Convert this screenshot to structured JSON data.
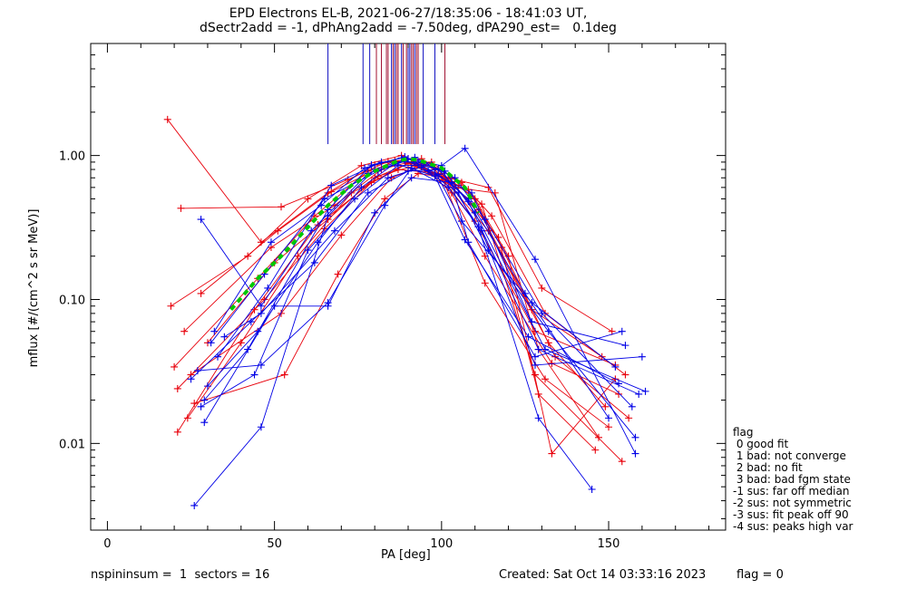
{
  "header": {
    "title_line1": "EPD Electrons EL-B, 2021-06-27/18:35:06 - 18:41:03 UT,",
    "title_line2": "dSectr2add = -1, dPhAng2add = -7.50deg, dPA290_est=   0.1deg"
  },
  "footer": {
    "left": "nspininsum =  1  sectors = 16",
    "created": "Created: Sat Oct 14 03:33:16 2023",
    "flag": "flag = 0"
  },
  "legend": {
    "title": "flag",
    "items": [
      " 0 good fit",
      " 1 bad: not converge",
      " 2 bad: no fit",
      " 3 bad: bad fgm state",
      "-1 sus: far off median",
      "-2 sus: not symmetric",
      "-3 sus: fit peak off 90",
      "-4 sus: peaks high var"
    ]
  },
  "chart_data": {
    "type": "line",
    "xlabel": "PA [deg]",
    "ylabel": "mflux [#/(cm^2 s sr MeV)]",
    "xlim": [
      -5,
      185
    ],
    "ylim": [
      0.0025,
      6
    ],
    "yscale": "log",
    "xticks": [
      0,
      50,
      100,
      150
    ],
    "xtick_labels": [
      "0",
      "50",
      "100",
      "150"
    ],
    "yticks": [
      0.01,
      0.1,
      1.0
    ],
    "ytick_labels": [
      "0.01",
      "0.10",
      "1.00"
    ],
    "colors": {
      "red": "#e8000b",
      "blue": "#0000e6",
      "green": "#00c800",
      "vline_red": "#a01030",
      "vline_blue": "#1010c0"
    },
    "vlines": {
      "y_bottom": 1.2,
      "red_x": [
        80.5,
        82,
        83.5,
        84,
        85.5,
        86.5,
        87,
        88.5,
        89.5,
        91,
        91.5,
        92.5,
        93,
        101
      ],
      "blue_x": [
        66,
        76.5,
        78.5,
        85,
        86,
        88,
        90,
        90.5,
        92,
        94.5,
        98
      ]
    },
    "series": [
      {
        "color": "red",
        "x": [
          18,
          46,
          66,
          80,
          90,
          100,
          113,
          131,
          150
        ],
        "y": [
          1.78,
          0.25,
          0.55,
          0.86,
          0.95,
          0.72,
          0.13,
          0.028,
          0.013
        ]
      },
      {
        "color": "red",
        "x": [
          22,
          52,
          72,
          84,
          93,
          103,
          113,
          133,
          153
        ],
        "y": [
          0.43,
          0.44,
          0.68,
          0.91,
          0.9,
          0.55,
          0.2,
          0.036,
          0.022
        ]
      },
      {
        "color": "red",
        "x": [
          19,
          42,
          60,
          76,
          88,
          98,
          110,
          128,
          152
        ],
        "y": [
          0.09,
          0.2,
          0.5,
          0.85,
          1.0,
          0.8,
          0.35,
          0.06,
          0.035
        ]
      },
      {
        "color": "red",
        "x": [
          20,
          45,
          62,
          78,
          89,
          101,
          114,
          132,
          149
        ],
        "y": [
          0.034,
          0.14,
          0.38,
          0.78,
          0.93,
          0.68,
          0.3,
          0.05,
          0.018
        ]
      },
      {
        "color": "red",
        "x": [
          21,
          47,
          65,
          81,
          92,
          104,
          116,
          129,
          147
        ],
        "y": [
          0.024,
          0.1,
          0.31,
          0.72,
          0.85,
          0.6,
          0.55,
          0.045,
          0.011
        ]
      },
      {
        "color": "red",
        "x": [
          23,
          49,
          68,
          82,
          94,
          106,
          115,
          131,
          155
        ],
        "y": [
          0.06,
          0.23,
          0.45,
          0.8,
          0.95,
          0.65,
          0.38,
          0.08,
          0.03
        ]
      },
      {
        "color": "red",
        "x": [
          25,
          52,
          70,
          85,
          97,
          108,
          118,
          134,
          156
        ],
        "y": [
          0.03,
          0.08,
          0.28,
          0.7,
          0.9,
          0.58,
          0.23,
          0.04,
          0.015
        ]
      },
      {
        "color": "red",
        "x": [
          28,
          51,
          67,
          86,
          98,
          110,
          120,
          133,
          152
        ],
        "y": [
          0.11,
          0.3,
          0.56,
          0.92,
          0.82,
          0.5,
          0.2,
          0.0085,
          0.028
        ]
      },
      {
        "color": "red",
        "x": [
          24,
          40,
          57,
          73,
          87,
          100,
          111,
          127,
          148
        ],
        "y": [
          0.015,
          0.05,
          0.2,
          0.55,
          0.8,
          0.75,
          0.42,
          0.085,
          0.04
        ]
      },
      {
        "color": "red",
        "x": [
          26,
          53,
          69,
          83,
          93,
          102,
          114,
          130,
          151
        ],
        "y": [
          0.019,
          0.03,
          0.15,
          0.5,
          0.75,
          0.7,
          0.6,
          0.12,
          0.06
        ]
      },
      {
        "color": "red",
        "x": [
          21,
          44,
          63,
          79,
          90,
          105,
          112,
          128,
          154
        ],
        "y": [
          0.012,
          0.085,
          0.33,
          0.65,
          0.88,
          0.62,
          0.46,
          0.03,
          0.0075
        ]
      },
      {
        "color": "red",
        "x": [
          30,
          50,
          66,
          80,
          91,
          103,
          117,
          129,
          146
        ],
        "y": [
          0.05,
          0.18,
          0.36,
          0.7,
          0.9,
          0.66,
          0.27,
          0.022,
          0.009
        ]
      },
      {
        "color": "blue",
        "x": [
          26,
          46,
          66,
          80,
          90,
          100,
          107,
          128,
          158
        ],
        "y": [
          0.0037,
          0.013,
          0.38,
          0.8,
          0.95,
          0.85,
          1.12,
          0.19,
          0.0085
        ]
      },
      {
        "color": "blue",
        "x": [
          28,
          46,
          61,
          78,
          89,
          99,
          108,
          129,
          159
        ],
        "y": [
          0.36,
          0.09,
          0.3,
          0.75,
          0.92,
          0.8,
          0.48,
          0.045,
          0.022
        ]
      },
      {
        "color": "blue",
        "x": [
          29,
          42,
          66,
          79,
          88,
          96,
          109,
          127,
          155
        ],
        "y": [
          0.02,
          0.045,
          0.42,
          0.86,
          0.96,
          0.78,
          0.55,
          0.07,
          0.048
        ]
      },
      {
        "color": "blue",
        "x": [
          30,
          45,
          63,
          76,
          86,
          98,
          107,
          126,
          153
        ],
        "y": [
          0.025,
          0.06,
          0.25,
          0.6,
          0.88,
          0.72,
          0.26,
          0.055,
          0.026
        ]
      },
      {
        "color": "blue",
        "x": [
          27,
          46,
          66,
          83,
          91,
          102,
          112,
          128,
          160
        ],
        "y": [
          0.032,
          0.035,
          0.095,
          0.45,
          0.82,
          0.6,
          0.3,
          0.035,
          0.04
        ]
      },
      {
        "color": "blue",
        "x": [
          31,
          47,
          65,
          81,
          92,
          104,
          113,
          130,
          157
        ],
        "y": [
          0.05,
          0.15,
          0.5,
          0.78,
          0.97,
          0.7,
          0.36,
          0.08,
          0.018
        ]
      },
      {
        "color": "blue",
        "x": [
          33,
          48,
          67,
          82,
          93,
          101,
          110,
          131,
          161
        ],
        "y": [
          0.04,
          0.12,
          0.62,
          0.9,
          0.9,
          0.78,
          0.4,
          0.045,
          0.023
        ]
      },
      {
        "color": "blue",
        "x": [
          28,
          44,
          60,
          74,
          87,
          97,
          106,
          127,
          152
        ],
        "y": [
          0.018,
          0.03,
          0.22,
          0.5,
          0.85,
          0.86,
          0.35,
          0.095,
          0.034
        ]
      },
      {
        "color": "blue",
        "x": [
          32,
          49,
          64,
          77,
          89,
          99,
          108,
          125,
          150
        ],
        "y": [
          0.06,
          0.25,
          0.45,
          0.82,
          0.98,
          0.74,
          0.5,
          0.11,
          0.015
        ]
      },
      {
        "color": "blue",
        "x": [
          25,
          43,
          62,
          78,
          90,
          100,
          111,
          129,
          145
        ],
        "y": [
          0.028,
          0.07,
          0.18,
          0.55,
          0.78,
          0.8,
          0.32,
          0.015,
          0.0048
        ]
      },
      {
        "color": "blue",
        "x": [
          35,
          46,
          68,
          84,
          94,
          105,
          114,
          132,
          158
        ],
        "y": [
          0.055,
          0.08,
          0.3,
          0.7,
          0.83,
          0.55,
          0.22,
          0.06,
          0.011
        ]
      },
      {
        "color": "blue",
        "x": [
          29,
          50,
          66,
          80,
          91,
          103,
          108,
          128,
          154
        ],
        "y": [
          0.014,
          0.09,
          0.09,
          0.4,
          0.7,
          0.65,
          0.25,
          0.04,
          0.06
        ]
      }
    ],
    "fit": {
      "color": "green",
      "x": [
        37,
        45,
        52,
        59,
        66,
        73,
        80,
        87,
        90,
        93,
        100,
        107,
        111
      ],
      "y": [
        0.085,
        0.14,
        0.2,
        0.3,
        0.45,
        0.62,
        0.78,
        0.92,
        0.95,
        0.93,
        0.82,
        0.6,
        0.4
      ]
    }
  }
}
